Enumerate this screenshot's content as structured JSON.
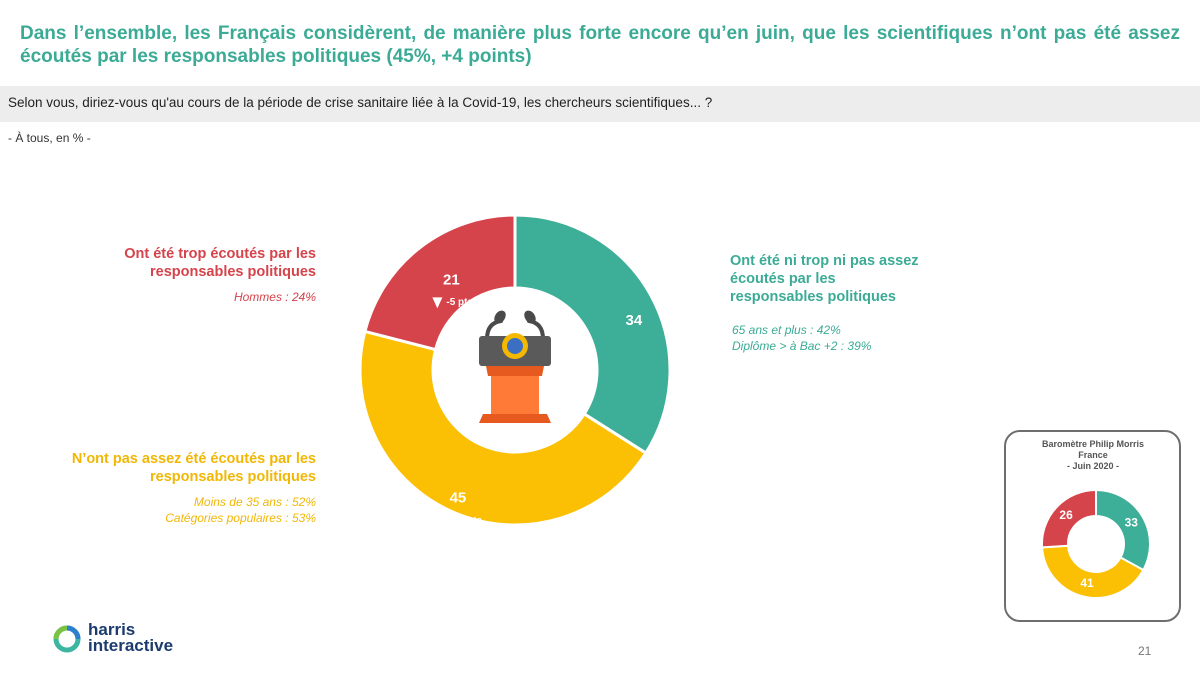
{
  "title": "Dans l’ensemble, les Français considèrent, de manière plus forte encore qu’en juin, que les scientifiques n’ont pas été assez écoutés par les responsables politiques (45%, +4 points)",
  "question": "Selon vous, diriez-vous qu'au cours de la période de crise sanitaire liée à la Covid-19, les chercheurs scientifiques... ?",
  "base": "- À tous, en % -",
  "labels": {
    "red_title_1": "Ont été trop écoutés par les",
    "red_title_2": "responsables politiques",
    "red_sub": "Hommes : 24%",
    "green_title_1": "Ont été ni trop ni pas assez",
    "green_title_2": "écoutés par les",
    "green_title_3": "responsables politiques",
    "green_sub_1": "65 ans et plus : 42%",
    "green_sub_2": "Diplôme > à Bac +2 : 39%",
    "yellow_title_1": "N’ont pas assez été écoutés par les",
    "yellow_title_2": "responsables politiques",
    "yellow_sub_1": "Moins de 35 ans : 52%",
    "yellow_sub_2": "Catégories populaires : 53%"
  },
  "mini_title": {
    "line1": "Baromètre Philip Morris",
    "line2": "France",
    "line3": "- Juin 2020 -"
  },
  "logo": {
    "line1": "harris",
    "line2": "interactive"
  },
  "page_number": "21",
  "icon": "podium-microphone-icon",
  "chart_data": [
    {
      "type": "pie",
      "variant": "donut",
      "categories": [
        "Ont été ni trop ni pas assez écoutés par les responsables politiques",
        "N’ont pas assez été écoutés par les responsables politiques",
        "Ont été trop écoutés par les responsables politiques"
      ],
      "values": [
        34,
        45,
        21
      ],
      "colors": [
        "#3dae97",
        "#fbbf03",
        "#d5434b"
      ],
      "changes": [
        "",
        "+4 pts",
        "-5 pts"
      ],
      "change_directions": [
        "",
        "up",
        "down"
      ]
    },
    {
      "type": "pie",
      "variant": "donut",
      "title": "Baromètre Philip Morris France - Juin 2020 -",
      "categories": [
        "Ont été ni trop ni pas assez écoutés par les responsables politiques",
        "N’ont pas assez été écoutés par les responsables politiques",
        "Ont été trop écoutés par les responsables politiques"
      ],
      "values": [
        33,
        41,
        26
      ],
      "colors": [
        "#3dae97",
        "#fbbf03",
        "#d5434b"
      ]
    }
  ]
}
